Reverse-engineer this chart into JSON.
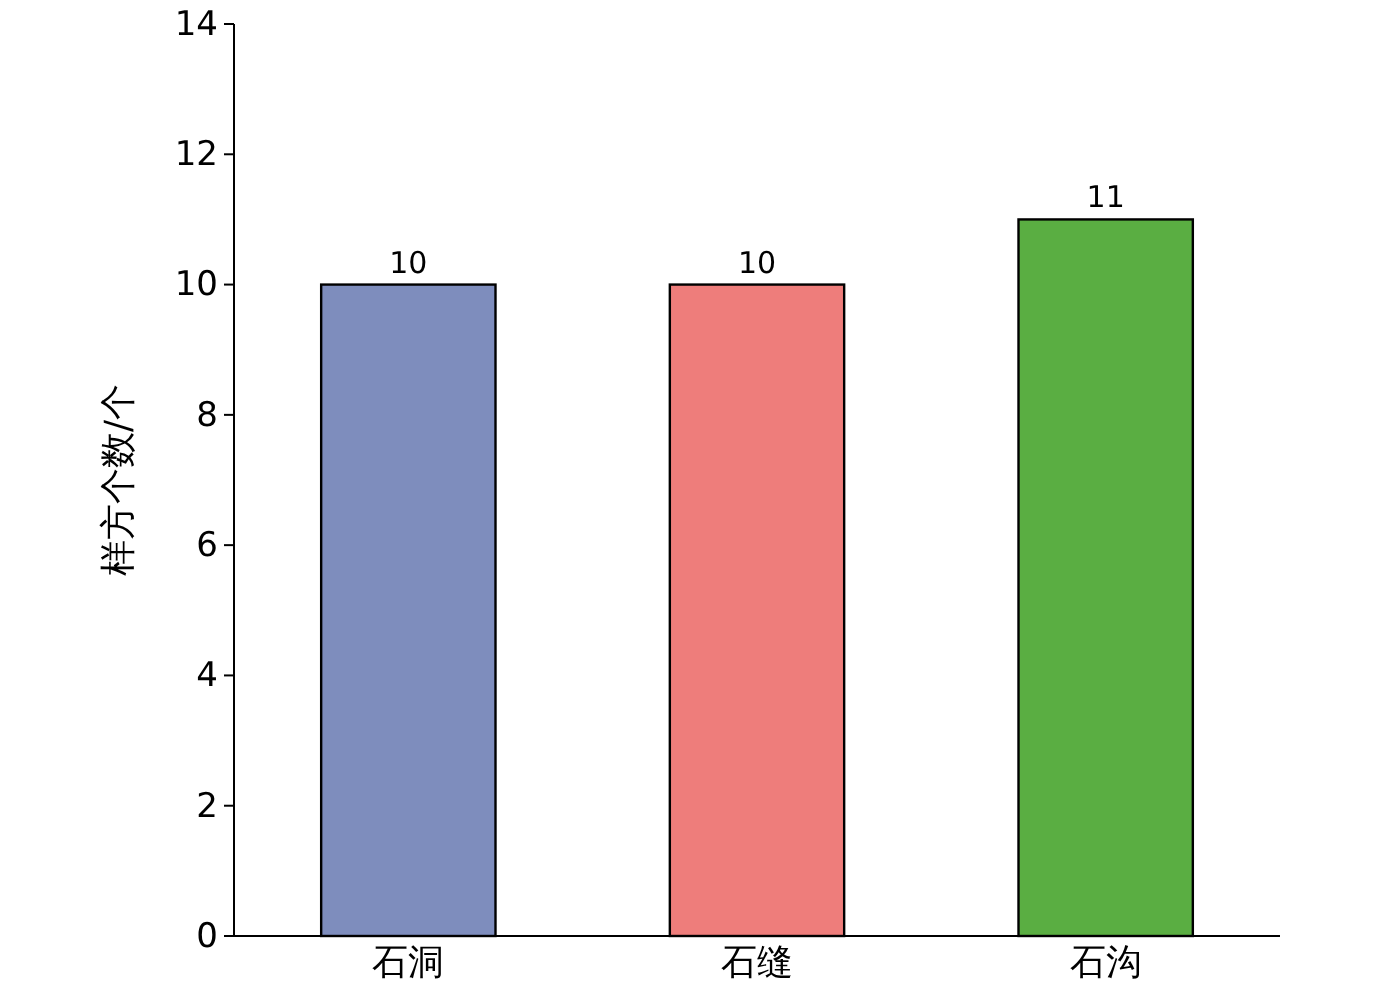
{
  "chart_data": {
    "type": "bar",
    "ylabel": "样方个数/个",
    "categories": [
      "石洞",
      "石缝",
      "石沟"
    ],
    "values": [
      10,
      10,
      11
    ],
    "colors": [
      "#7e8dbd",
      "#ee7d7b",
      "#5aae42"
    ],
    "ylim": [
      0,
      14
    ],
    "yticks": [
      0,
      2,
      4,
      6,
      8,
      10,
      12,
      14
    ],
    "data_labels": true
  }
}
